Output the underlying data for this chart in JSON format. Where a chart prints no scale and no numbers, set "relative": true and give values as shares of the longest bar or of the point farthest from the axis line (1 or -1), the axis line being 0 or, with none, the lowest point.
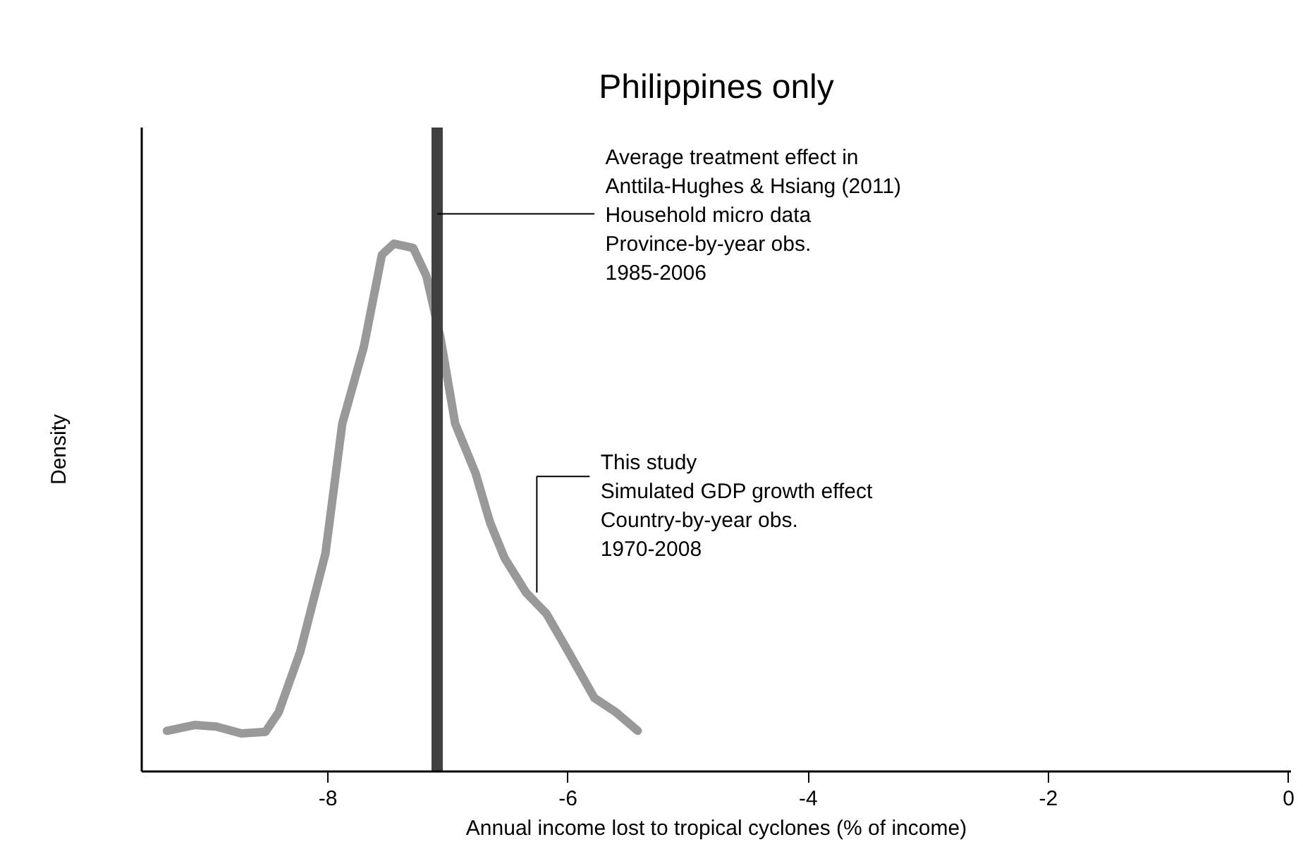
{
  "chart_data": {
    "type": "line",
    "title": "Philippines only",
    "xlabel": "Annual income lost to tropical cyclones (% of income)",
    "ylabel": "Density",
    "relative": true,
    "x": [
      -9.34,
      -9.11,
      -8.93,
      -8.72,
      -8.52,
      -8.41,
      -8.23,
      -8.02,
      -7.88,
      -7.7,
      -7.55,
      -7.45,
      -7.29,
      -7.18,
      -7.06,
      -6.94,
      -6.77,
      -6.65,
      -6.53,
      -6.35,
      -6.18,
      -6.01,
      -5.78,
      -5.6,
      -5.42
    ],
    "series": [
      {
        "color": "#999999",
        "values": [
          0.077,
          0.088,
          0.085,
          0.072,
          0.075,
          0.112,
          0.227,
          0.413,
          0.659,
          0.805,
          0.979,
          1.0,
          0.992,
          0.939,
          0.819,
          0.659,
          0.565,
          0.472,
          0.405,
          0.339,
          0.299,
          0.232,
          0.139,
          0.112,
          0.077
        ]
      }
    ],
    "xlim": [
      -9.55,
      0.02
    ],
    "xticks": [
      -8,
      -6,
      -4,
      -2,
      0
    ],
    "tick_labels": "x",
    "grid": false,
    "marker": "none",
    "line_style": "solid",
    "ref_lines": [
      {
        "axis": "x",
        "value": -7.09,
        "color": "#404040",
        "label": "Average treatment effect in\nAnttila-Hughes & Hsiang (2011)\nHousehold micro data\nProvince-by-year obs.\n1985-2006"
      }
    ],
    "annotations": [
      {
        "text": "This study\nSimulated GDP growth effect\nCountry-by-year obs.\n1970-2008",
        "x": -6.26,
        "y": 0.339
      }
    ]
  }
}
